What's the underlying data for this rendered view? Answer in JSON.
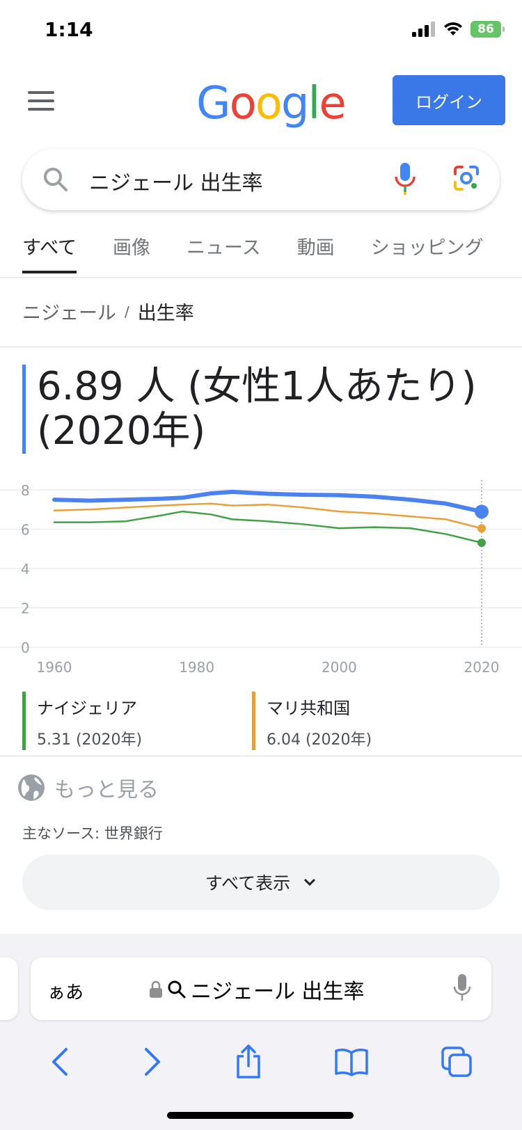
{
  "status": {
    "time": "1:14",
    "battery": "86"
  },
  "header": {
    "logo": "Google",
    "login_label": "ログイン"
  },
  "search": {
    "query": "ニジェール 出生率"
  },
  "tabs": [
    {
      "label": "すべて"
    },
    {
      "label": "画像"
    },
    {
      "label": "ニュース"
    },
    {
      "label": "動画"
    },
    {
      "label": "ショッピング"
    }
  ],
  "breadcrumb": {
    "country": "ニジェール",
    "separator": "/",
    "topic": "出生率"
  },
  "value": "6.89 人 (女性1人あたり) (2020年)",
  "chart_data": {
    "type": "line",
    "x": [
      1960,
      1965,
      1970,
      1975,
      1978,
      1982,
      1985,
      1990,
      1995,
      2000,
      2005,
      2010,
      2015,
      2020
    ],
    "series": [
      {
        "name": "ニジェール",
        "color": "#4a83f0",
        "values": [
          7.5,
          7.45,
          7.5,
          7.55,
          7.6,
          7.82,
          7.9,
          7.8,
          7.75,
          7.73,
          7.65,
          7.5,
          7.3,
          6.89
        ]
      },
      {
        "name": "マリ共和国",
        "color": "#e8a03b",
        "values": [
          6.95,
          7.0,
          7.1,
          7.2,
          7.25,
          7.3,
          7.2,
          7.25,
          7.1,
          6.9,
          6.8,
          6.65,
          6.5,
          6.04
        ]
      },
      {
        "name": "ナイジェリア",
        "color": "#43a047",
        "values": [
          6.35,
          6.35,
          6.4,
          6.7,
          6.9,
          6.75,
          6.5,
          6.4,
          6.25,
          6.05,
          6.1,
          6.05,
          5.75,
          5.31
        ]
      }
    ],
    "xticks": [
      "1960",
      "1980",
      "2000",
      "2020"
    ],
    "yticks": [
      "0",
      "2",
      "4",
      "6",
      "8"
    ],
    "xlim": [
      1960,
      2020
    ],
    "ylim": [
      0,
      8
    ],
    "grid": true
  },
  "legend": [
    {
      "name": "ナイジェリア",
      "value": "5.31 (2020年)",
      "color": "#43a047"
    },
    {
      "name": "マリ共和国",
      "value": "6.04 (2020年)",
      "color": "#e8a03b"
    }
  ],
  "more_label": "もっと見る",
  "source": "主なソース: 世界銀行",
  "show_all_label": "すべて表示",
  "safari": {
    "aa": "ぁあ",
    "url": "ニジェール 出生率"
  }
}
